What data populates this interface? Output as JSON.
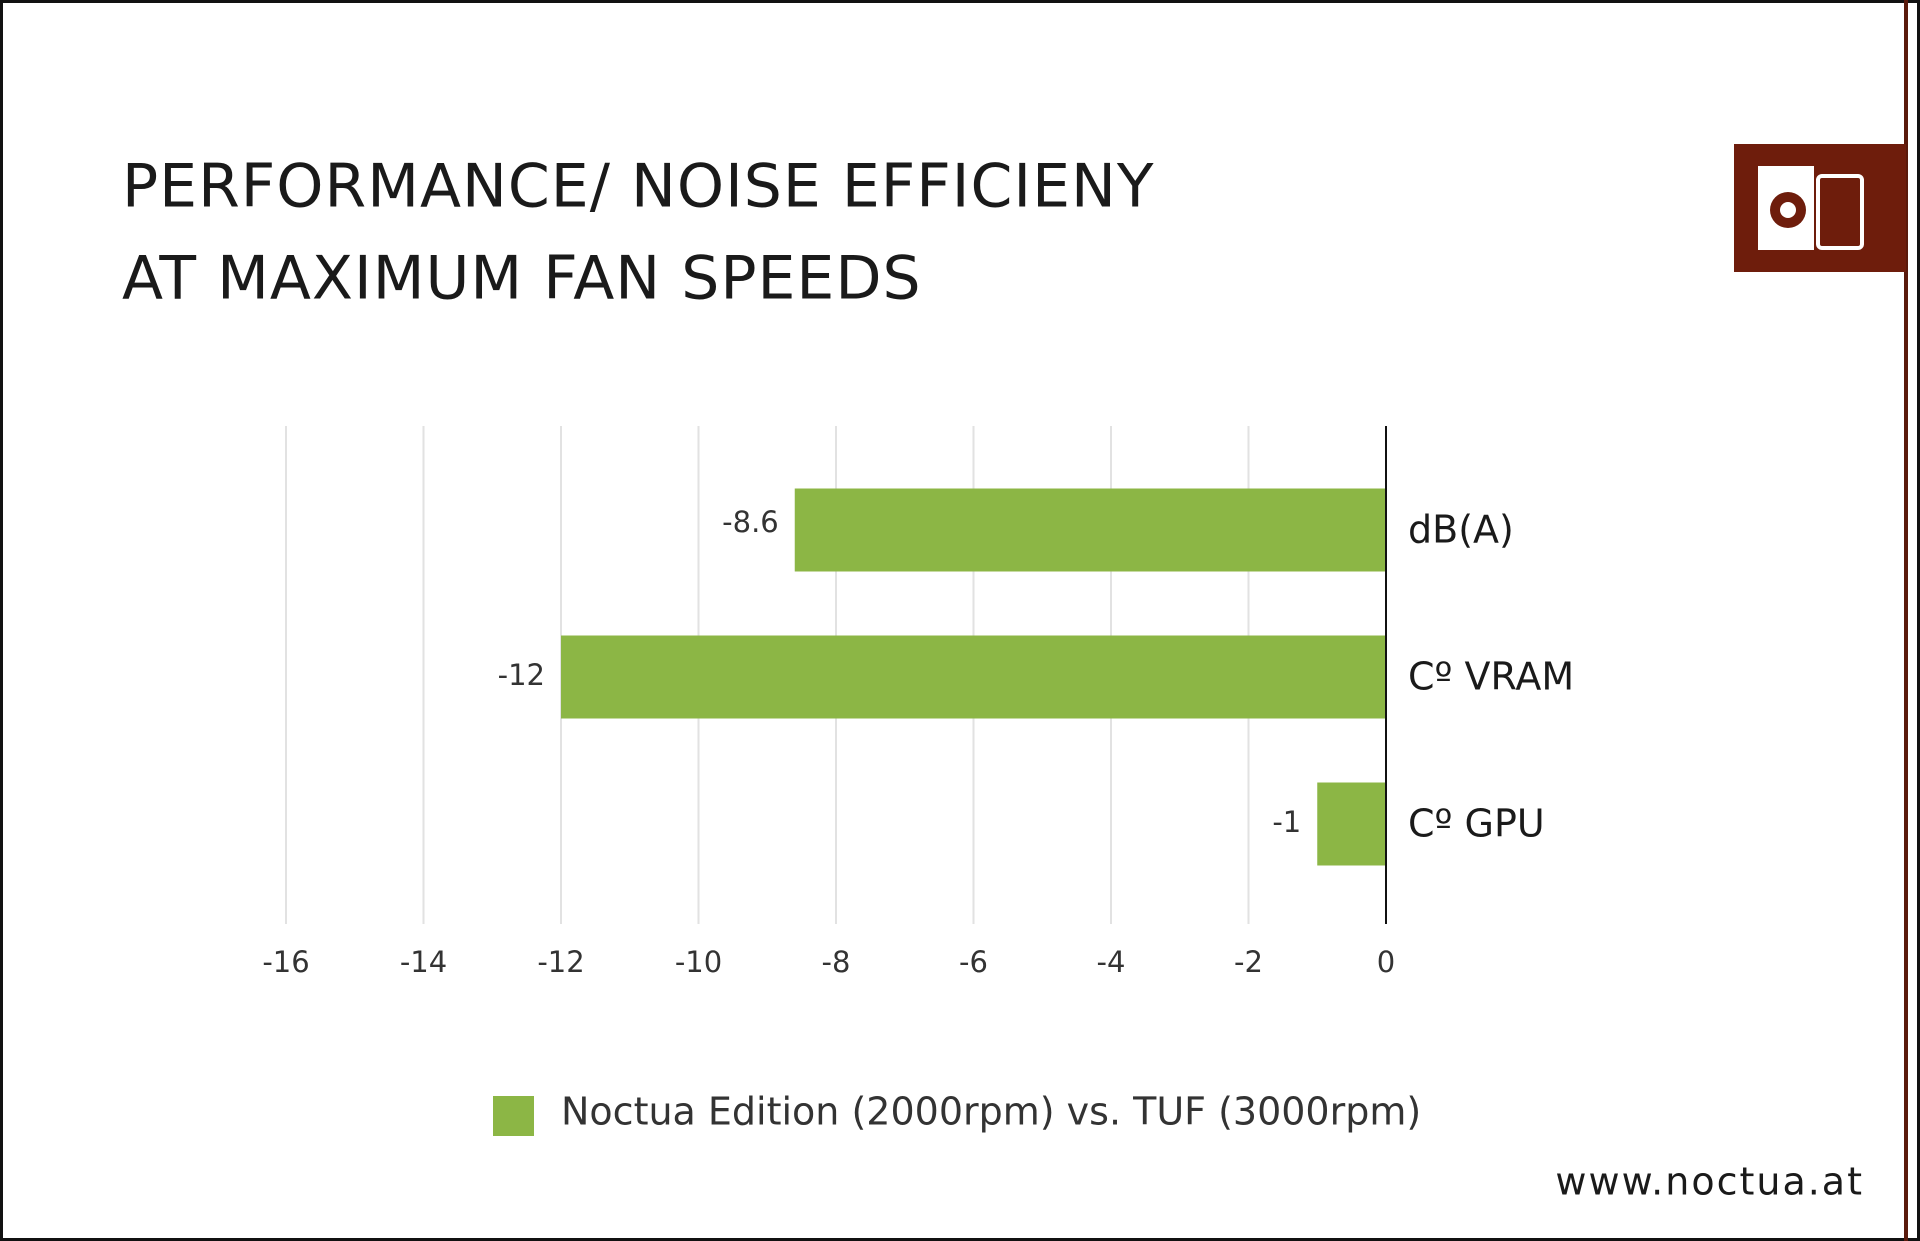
{
  "chart_data": {
    "type": "barh",
    "title": [
      "PERFORMANCE/ NOISE EFFICIENY",
      "AT MAXIMUM FAN SPEEDS"
    ],
    "categories": [
      "dB(A)",
      "Cº VRAM",
      "Cº GPU"
    ],
    "series": [
      {
        "name": "Noctua Edition (2000rpm) vs. TUF (3000rpm)",
        "color": "#8cb645",
        "values": [
          -8.6,
          -12,
          -1
        ]
      }
    ],
    "xlim": [
      -16,
      0
    ],
    "xticks": [
      -16,
      -14,
      -12,
      -10,
      -8,
      -6,
      -4,
      -2,
      0
    ],
    "grid": true,
    "legend": "bottom",
    "source": "www.noctua.at"
  }
}
